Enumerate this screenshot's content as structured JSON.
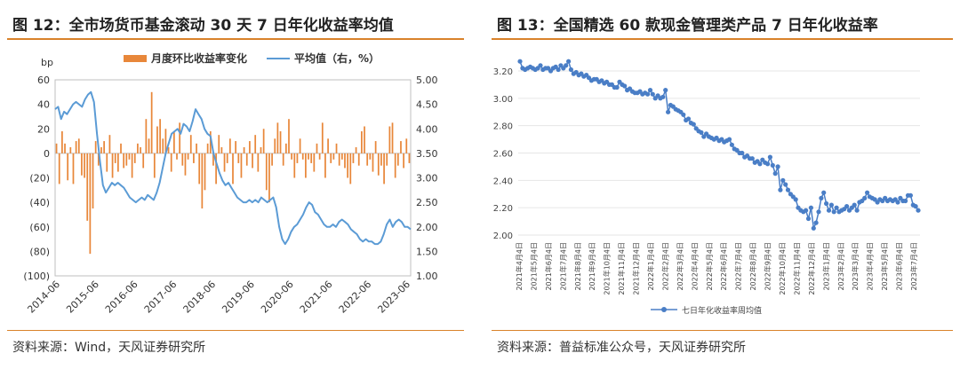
{
  "left": {
    "title": "图 12：全市场货币基金滚动 30 天 7 日年化收益率均值",
    "source": "资料来源：Wind，天风证券研究所",
    "chart_data": {
      "type": "bar+line",
      "y_left_unit": "bp",
      "y_left_ticks": [
        "60",
        "40",
        "20",
        "0",
        "(20)",
        "(40)",
        "(60)",
        "(80)",
        "(100)"
      ],
      "y_left_range": [
        -100,
        60
      ],
      "y_right_ticks": [
        "5.00",
        "4.50",
        "4.00",
        "3.50",
        "3.00",
        "2.50",
        "2.00",
        "1.50",
        "1.00"
      ],
      "y_right_range": [
        1.0,
        5.0
      ],
      "x_ticks": [
        "2014-06",
        "2015-06",
        "2016-06",
        "2017-06",
        "2018-06",
        "2019-06",
        "2020-06",
        "2021-06",
        "2022-06",
        "2023-06"
      ],
      "legend": {
        "bar": "月度环比收益率变化",
        "line": "平均值（右，%）"
      },
      "colors": {
        "bar": "#e8873a",
        "line": "#5b9bd5"
      },
      "bars": [
        8,
        -25,
        18,
        8,
        -22,
        5,
        -25,
        10,
        12,
        -18,
        -20,
        -55,
        -82,
        -45,
        10,
        -10,
        5,
        10,
        -15,
        15,
        -20,
        -8,
        -15,
        8,
        -12,
        -10,
        -5,
        -20,
        -8,
        8,
        5,
        -12,
        28,
        12,
        50,
        -20,
        22,
        28,
        12,
        20,
        5,
        -15,
        18,
        -5,
        25,
        -10,
        -18,
        -5,
        15,
        -8,
        8,
        -25,
        -45,
        -30,
        8,
        18,
        -10,
        -25,
        15,
        5,
        -15,
        -8,
        12,
        -25,
        10,
        -8,
        -20,
        5,
        -10,
        10,
        -12,
        15,
        -15,
        5,
        20,
        -30,
        -40,
        -10,
        12,
        25,
        18,
        -10,
        8,
        28,
        -5,
        -20,
        -8,
        12,
        -5,
        -20,
        -5,
        -8,
        -15,
        8,
        -5,
        25,
        -20,
        12,
        -8,
        -5,
        8,
        -10,
        -5,
        -12,
        -20,
        -25,
        -8,
        5,
        -10,
        18,
        22,
        -10,
        -5,
        -15,
        10,
        -18,
        -10,
        -25,
        -10,
        22,
        25,
        -20,
        -10,
        10,
        -12,
        12,
        -8
      ],
      "line": [
        4.4,
        4.45,
        4.2,
        4.35,
        4.3,
        4.4,
        4.5,
        4.55,
        4.5,
        4.45,
        4.6,
        4.7,
        4.75,
        4.55,
        3.9,
        3.35,
        2.85,
        2.7,
        2.8,
        2.9,
        2.85,
        2.9,
        2.85,
        2.8,
        2.7,
        2.6,
        2.55,
        2.5,
        2.55,
        2.6,
        2.55,
        2.65,
        2.6,
        2.55,
        2.7,
        2.9,
        3.2,
        3.5,
        3.7,
        3.9,
        3.95,
        4.0,
        3.9,
        4.1,
        4.05,
        3.95,
        4.15,
        4.4,
        4.3,
        4.2,
        4.0,
        3.9,
        3.85,
        3.5,
        3.3,
        3.1,
        2.95,
        2.85,
        2.9,
        2.8,
        2.7,
        2.6,
        2.55,
        2.5,
        2.5,
        2.55,
        2.5,
        2.55,
        2.5,
        2.6,
        2.55,
        2.5,
        2.55,
        2.6,
        2.4,
        2.0,
        1.75,
        1.65,
        1.75,
        1.9,
        2.0,
        2.05,
        2.15,
        2.25,
        2.4,
        2.5,
        2.45,
        2.3,
        2.25,
        2.15,
        2.05,
        2.0,
        2.0,
        2.05,
        2.0,
        2.1,
        2.15,
        2.1,
        2.05,
        1.95,
        1.9,
        1.85,
        1.75,
        1.7,
        1.75,
        1.7,
        1.7,
        1.65,
        1.65,
        1.7,
        1.85,
        2.05,
        2.15,
        2.0,
        2.1,
        2.15,
        2.1,
        2.0,
        2.0,
        1.95
      ]
    }
  },
  "right": {
    "title": "图 13：全国精选 60 款现金管理类产品 7 日年化收益率",
    "source": "资料来源：普益标准公众号，天风证券研究所",
    "chart_data": {
      "type": "line",
      "y_ticks": [
        "3.20",
        "3.00",
        "2.80",
        "2.60",
        "2.40",
        "2.20",
        "2.00"
      ],
      "y_range": [
        2.0,
        3.2
      ],
      "x_ticks": [
        "2021年4月4日",
        "2021年5月4日",
        "2021年6月4日",
        "2021年7月4日",
        "2021年8月4日",
        "2021年9月4日",
        "2021年10月4日",
        "2021年11月4日",
        "2021年12月4日",
        "2022年1月4日",
        "2022年2月4日",
        "2022年3月4日",
        "2022年4月4日",
        "2022年5月4日",
        "2022年6月4日",
        "2022年7月4日",
        "2022年8月4日",
        "2022年9月4日",
        "2022年10月4日",
        "2022年11月4日",
        "2022年12月4日",
        "2023年1月4日",
        "2023年2月4日",
        "2023年3月4日",
        "2023年4月4日",
        "2023年5月4日",
        "2023年6月4日",
        "2023年7月4日"
      ],
      "legend": "七日年化收益率周均值",
      "colors": {
        "line": "#4a7ec6"
      },
      "values": [
        3.27,
        3.22,
        3.21,
        3.22,
        3.23,
        3.22,
        3.21,
        3.22,
        3.24,
        3.21,
        3.22,
        3.22,
        3.2,
        3.22,
        3.23,
        3.21,
        3.24,
        3.22,
        3.24,
        3.27,
        3.21,
        3.18,
        3.19,
        3.17,
        3.18,
        3.16,
        3.17,
        3.15,
        3.13,
        3.14,
        3.14,
        3.12,
        3.13,
        3.11,
        3.12,
        3.1,
        3.1,
        3.08,
        3.08,
        3.12,
        3.1,
        3.09,
        3.06,
        3.07,
        3.05,
        3.04,
        3.04,
        3.05,
        3.03,
        3.04,
        3.03,
        3.06,
        3.03,
        3.0,
        3.02,
        3.0,
        3.01,
        3.06,
        2.9,
        2.95,
        2.94,
        2.92,
        2.91,
        2.9,
        2.88,
        2.84,
        2.85,
        2.82,
        2.81,
        2.78,
        2.76,
        2.75,
        2.72,
        2.74,
        2.72,
        2.71,
        2.7,
        2.71,
        2.69,
        2.7,
        2.68,
        2.69,
        2.7,
        2.66,
        2.63,
        2.62,
        2.6,
        2.6,
        2.57,
        2.58,
        2.56,
        2.56,
        2.53,
        2.54,
        2.52,
        2.55,
        2.53,
        2.52,
        2.57,
        2.51,
        2.45,
        2.5,
        2.33,
        2.4,
        2.37,
        2.33,
        2.3,
        2.28,
        2.26,
        2.2,
        2.18,
        2.17,
        2.18,
        2.12,
        2.2,
        2.05,
        2.09,
        2.17,
        2.27,
        2.31,
        2.23,
        2.18,
        2.22,
        2.17,
        2.2,
        2.17,
        2.18,
        2.19,
        2.21,
        2.18,
        2.2,
        2.22,
        2.18,
        2.24,
        2.25,
        2.27,
        2.31,
        2.28,
        2.27,
        2.26,
        2.24,
        2.26,
        2.25,
        2.27,
        2.25,
        2.26,
        2.25,
        2.26,
        2.24,
        2.27,
        2.25,
        2.25,
        2.29,
        2.29,
        2.22,
        2.21,
        2.18
      ]
    }
  }
}
